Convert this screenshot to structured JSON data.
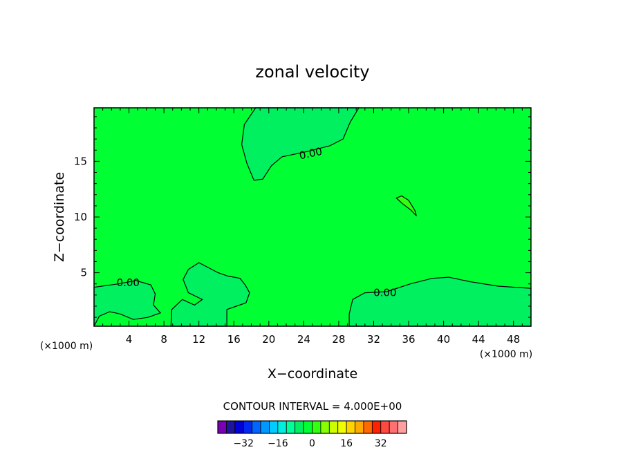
{
  "chart_data": {
    "type": "contour",
    "title": "zonal velocity",
    "xlabel": "X−coordinate",
    "ylabel": "Z−coordinate",
    "x_unit_label": "(×1000 m)",
    "y_unit_label": "(×1000 m)",
    "xlim": [
      0,
      50
    ],
    "ylim": [
      0.2,
      19.8
    ],
    "x_ticks": [
      4,
      8,
      12,
      16,
      20,
      24,
      28,
      32,
      36,
      40,
      44,
      48
    ],
    "y_ticks": [
      5,
      10,
      15
    ],
    "contour_interval_text": "CONTOUR INTERVAL = 4.000E+00",
    "contour_label": "0.00",
    "background_color": "#00ff33",
    "colorbar": {
      "ticks": [
        "−32",
        "−16",
        "0",
        "16",
        "32"
      ],
      "tick_values": [
        -32,
        -16,
        0,
        16,
        32
      ],
      "colors": [
        "#7a00b4",
        "#20149e",
        "#0000d8",
        "#0028f0",
        "#0066ff",
        "#0099ff",
        "#00ccff",
        "#00eedd",
        "#00ff99",
        "#00f060",
        "#00ff33",
        "#33ff10",
        "#88ff00",
        "#ccff00",
        "#f0ff00",
        "#ffd400",
        "#ffaa00",
        "#ff6a00",
        "#ff2200",
        "#ff4a40",
        "#ff7070",
        "#ffa0a0"
      ],
      "range": [
        -44,
        44
      ]
    },
    "regions": [
      {
        "name": "upper-center",
        "value": "0.00",
        "color": "#00f060",
        "points": [
          [
            18.3,
            13.3
          ],
          [
            17.5,
            14.8
          ],
          [
            16.9,
            16.5
          ],
          [
            17.2,
            18.3
          ],
          [
            18.5,
            19.8
          ],
          [
            30.3,
            19.8
          ],
          [
            29.3,
            18.5
          ],
          [
            28.5,
            17.0
          ],
          [
            27.0,
            16.4
          ],
          [
            24.5,
            15.9
          ],
          [
            21.5,
            15.4
          ],
          [
            20.3,
            14.6
          ],
          [
            19.3,
            13.4
          ]
        ]
      },
      {
        "name": "small-blob",
        "value": "0.00",
        "color": "#33ff10",
        "points": [
          [
            34.6,
            11.7
          ],
          [
            35.3,
            11.2
          ],
          [
            36.3,
            10.6
          ],
          [
            36.9,
            10.1
          ],
          [
            36.7,
            10.6
          ],
          [
            36.0,
            11.5
          ],
          [
            35.2,
            11.9
          ]
        ]
      },
      {
        "name": "lower-right",
        "value": "0.00",
        "color": "#00f060",
        "points": [
          [
            29.2,
            0.2
          ],
          [
            29.2,
            1.3
          ],
          [
            29.6,
            2.6
          ],
          [
            31.0,
            3.2
          ],
          [
            33.5,
            3.3
          ],
          [
            36.2,
            4.0
          ],
          [
            38.7,
            4.5
          ],
          [
            40.6,
            4.6
          ],
          [
            43.0,
            4.2
          ],
          [
            46.2,
            3.8
          ],
          [
            50.0,
            3.6
          ],
          [
            50.0,
            0.2
          ]
        ]
      },
      {
        "name": "lower-center",
        "value": "0.00",
        "color": "#00f060",
        "points": [
          [
            8.8,
            0.2
          ],
          [
            8.9,
            1.7
          ],
          [
            10.1,
            2.6
          ],
          [
            11.5,
            2.1
          ],
          [
            12.4,
            2.6
          ],
          [
            10.8,
            3.2
          ],
          [
            10.2,
            4.4
          ],
          [
            10.8,
            5.3
          ],
          [
            12.0,
            5.9
          ],
          [
            13.0,
            5.5
          ],
          [
            14.2,
            5.0
          ],
          [
            15.3,
            4.7
          ],
          [
            16.7,
            4.5
          ],
          [
            17.3,
            3.9
          ],
          [
            17.8,
            3.2
          ],
          [
            17.4,
            2.3
          ],
          [
            15.2,
            1.7
          ],
          [
            15.2,
            0.2
          ]
        ]
      },
      {
        "name": "lower-left",
        "value": "0.00",
        "color": "#00f060",
        "points": [
          [
            0,
            0.2
          ],
          [
            0,
            3.7
          ],
          [
            2.8,
            4.0
          ],
          [
            4.8,
            4.3
          ],
          [
            6.5,
            3.9
          ],
          [
            7.0,
            3.1
          ],
          [
            6.8,
            2.1
          ],
          [
            7.6,
            1.4
          ],
          [
            6.2,
            1.0
          ],
          [
            4.5,
            0.8
          ],
          [
            3.0,
            1.3
          ],
          [
            1.8,
            1.5
          ],
          [
            0.6,
            1.1
          ]
        ]
      }
    ],
    "contour_labels": [
      {
        "x": 24.8,
        "y": 15.7,
        "angle": -12
      },
      {
        "x": 3.9,
        "y": 4.1,
        "angle": 0
      },
      {
        "x": 33.3,
        "y": 3.2,
        "angle": 0
      }
    ]
  }
}
